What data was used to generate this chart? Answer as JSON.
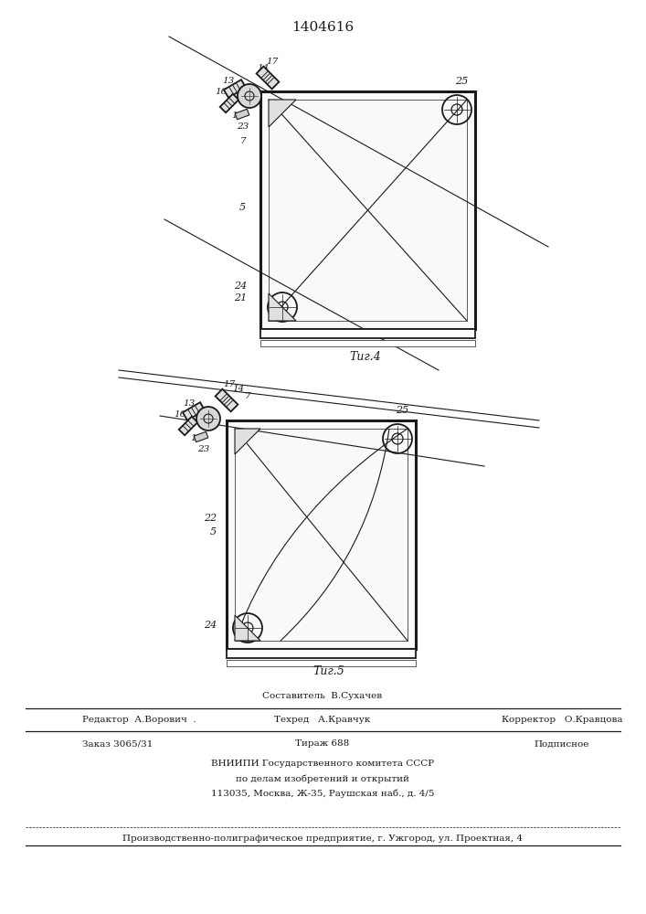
{
  "title": "1404616",
  "fig4_caption": "Τиг.4",
  "fig5_caption": "Τиг.5",
  "bg_color": "#ffffff",
  "line_color": "#1a1a1a",
  "footer_line1_left": "Редактор  А.Ворович  .",
  "footer_line1_center": "Составитель  В.Сухачев\nТехред   А.Кравчук",
  "footer_line1_right": "Корректор   О.Кравцова",
  "footer_line2_left": "Заказ 3065/31",
  "footer_line2_center": "Тираж 688",
  "footer_line2_right": "Подписное",
  "footer_line3": "ВНИИПИ Государственного комитета СССР",
  "footer_line4": "по делам изобретений и открытий",
  "footer_line5": "113035, Москва, Ж-35, Раушская наб., д. 4/5",
  "footer_line6": "Производственно-полиграфическое предприятие, г. Ужгород, ул. Проектная, 4"
}
